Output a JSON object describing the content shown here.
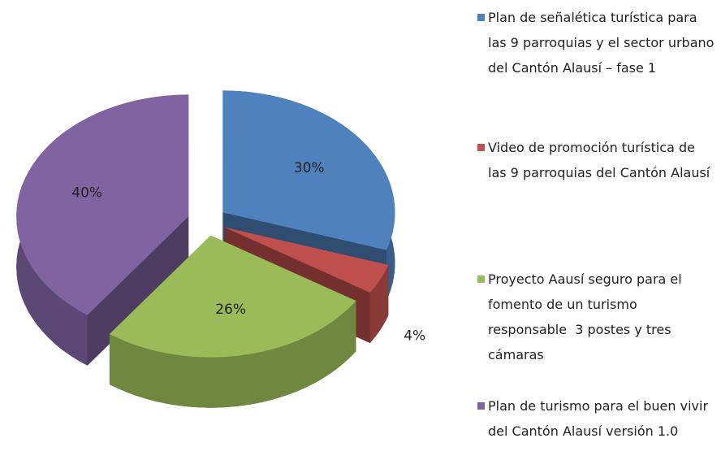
{
  "chart_data": {
    "type": "pie",
    "categories": [
      "Plan de señalética turística para las 9 parroquias y el sector urbano del Cantón Alausí – fase 1",
      "Video de promoción turística de las 9 parroquias del Cantón Alausí",
      "Proyecto Aausí seguro para el fomento de un turismo responsable  3 postes y tres cámaras",
      "Plan de turismo para el buen vivir del Cantón Alausí versión 1.0"
    ],
    "values": [
      30,
      4,
      26,
      40
    ],
    "value_labels": [
      "30%",
      "4%",
      "26%",
      "40%"
    ],
    "colors": [
      "#4f81bd",
      "#c0504d",
      "#9bbb59",
      "#8064a2"
    ],
    "legend": "right"
  }
}
